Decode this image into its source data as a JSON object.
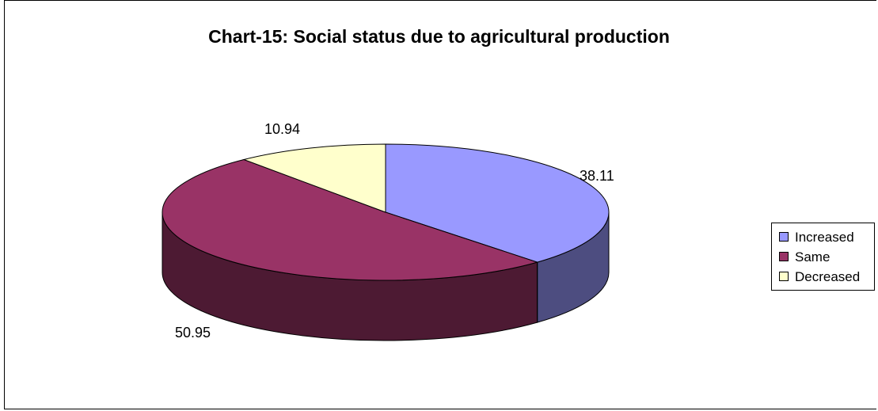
{
  "chart_data": {
    "type": "pie",
    "title": "Chart-15: Social status due to agricultural production",
    "categories": [
      "Increased",
      "Same",
      "Decreased"
    ],
    "values": [
      38.11,
      50.95,
      10.94
    ],
    "colors": [
      "#9999FF",
      "#993366",
      "#FFFFCC"
    ],
    "side_colors": [
      "#4D4D80",
      "#4D1A33",
      "#808066"
    ],
    "data_labels": [
      "38.11",
      "50.95",
      "10.94"
    ],
    "legend": {
      "entries": [
        "Increased",
        "Same",
        "Decreased"
      ],
      "placement": "right"
    },
    "style": "3d"
  }
}
